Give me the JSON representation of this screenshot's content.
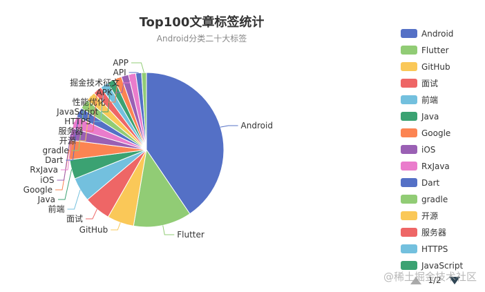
{
  "chart_data": {
    "type": "pie",
    "title": "Top100文章标签统计",
    "subtitle": "Android分类二十大标签",
    "categories": [
      "Android",
      "Flutter",
      "GitHub",
      "面试",
      "前端",
      "Java",
      "Google",
      "iOS",
      "RxJava",
      "Dart",
      "gradle",
      "开源",
      "服务器",
      "HTTPS",
      "JavaScript",
      "性能优化",
      "APK",
      "掘金技术征文",
      "API",
      "APP"
    ],
    "values": [
      40,
      12,
      5.5,
      5.5,
      5,
      4,
      4,
      2.5,
      2.5,
      2,
      2,
      2,
      1.8,
      1.7,
      1.5,
      1.5,
      1.5,
      1.5,
      1.2,
      1
    ],
    "colors": [
      "#5470c6",
      "#91cc75",
      "#fac858",
      "#ee6666",
      "#73c0de",
      "#3ba272",
      "#fc8452",
      "#9a60b4",
      "#ea7ccc",
      "#5470c6",
      "#91cc75",
      "#fac858",
      "#ee6666",
      "#73c0de",
      "#3ba272",
      "#fc8452",
      "#9a60b4",
      "#ea7ccc",
      "#5470c6",
      "#91cc75"
    ],
    "legend": {
      "position": "right",
      "visible_items": [
        "Android",
        "Flutter",
        "GitHub",
        "面试",
        "前端",
        "Java",
        "Google",
        "iOS",
        "RxJava",
        "Dart",
        "gradle",
        "开源",
        "服务器",
        "HTTPS",
        "JavaScript"
      ],
      "page": "1/2"
    }
  },
  "watermark": "@稀土掘金技术社区"
}
